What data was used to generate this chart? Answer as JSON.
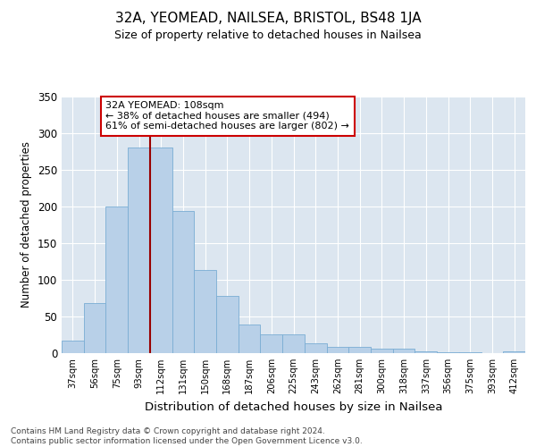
{
  "title": "32A, YEOMEAD, NAILSEA, BRISTOL, BS48 1JA",
  "subtitle": "Size of property relative to detached houses in Nailsea",
  "xlabel": "Distribution of detached houses by size in Nailsea",
  "ylabel": "Number of detached properties",
  "categories": [
    "37sqm",
    "56sqm",
    "75sqm",
    "93sqm",
    "112sqm",
    "131sqm",
    "150sqm",
    "168sqm",
    "187sqm",
    "206sqm",
    "225sqm",
    "243sqm",
    "262sqm",
    "281sqm",
    "300sqm",
    "318sqm",
    "337sqm",
    "356sqm",
    "375sqm",
    "393sqm",
    "412sqm"
  ],
  "values": [
    17,
    68,
    200,
    280,
    280,
    193,
    113,
    78,
    39,
    25,
    25,
    13,
    8,
    8,
    6,
    6,
    3,
    1,
    1,
    0,
    2
  ],
  "bar_color": "#b8d0e8",
  "bar_edge_color": "#7aadd4",
  "vline_color": "#990000",
  "vline_x_index": 4,
  "annotation_text": "32A YEOMEAD: 108sqm\n← 38% of detached houses are smaller (494)\n61% of semi-detached houses are larger (802) →",
  "annotation_box_color": "white",
  "annotation_box_edge": "#cc0000",
  "ylim": [
    0,
    350
  ],
  "yticks": [
    0,
    50,
    100,
    150,
    200,
    250,
    300,
    350
  ],
  "background_color": "#dce6f0",
  "grid_color": "white",
  "footer": "Contains HM Land Registry data © Crown copyright and database right 2024.\nContains public sector information licensed under the Open Government Licence v3.0."
}
